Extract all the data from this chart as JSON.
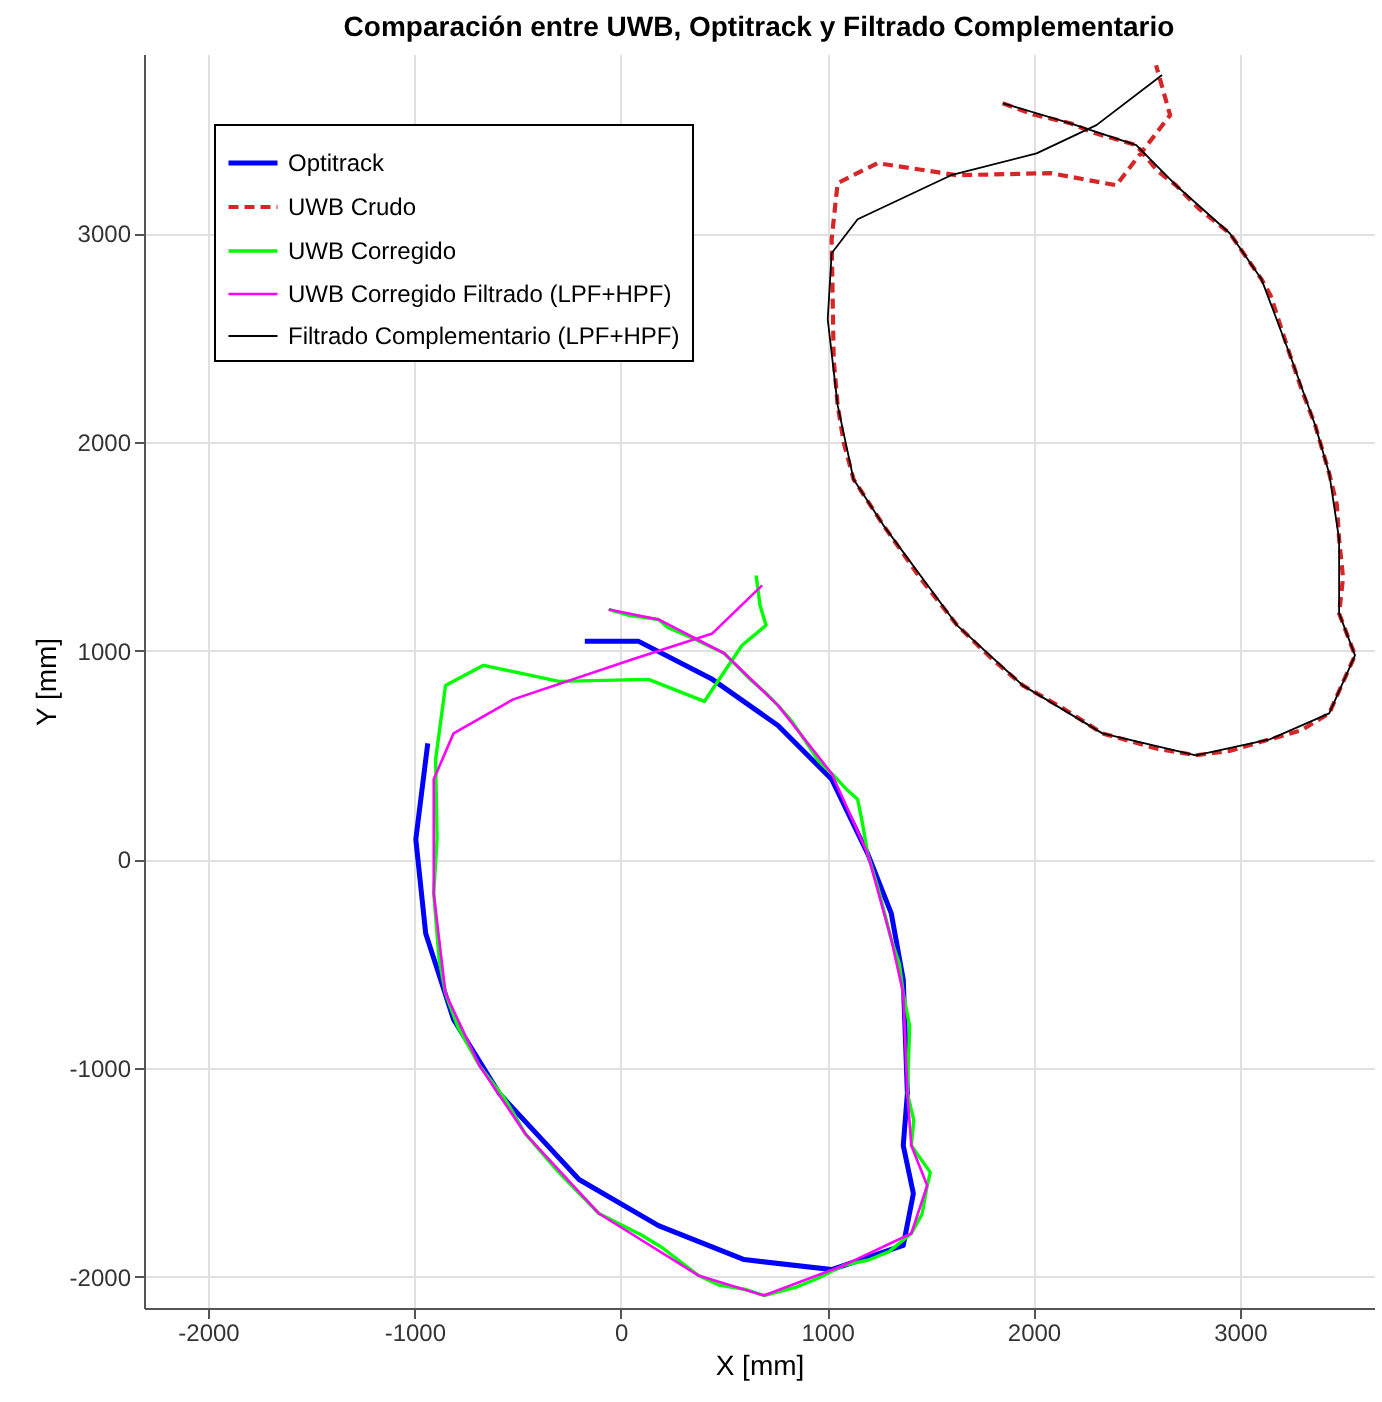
{
  "chart_data": {
    "type": "line",
    "title": "Comparación entre UWB, Optitrack y Filtrado Complementario",
    "xlabel": "X [mm]",
    "ylabel": "Y [mm]",
    "xlim": [
      -2310,
      3650
    ],
    "ylim": [
      -2150,
      3860
    ],
    "xticks": [
      -2000,
      -1000,
      0,
      1000,
      2000,
      3000
    ],
    "yticks": [
      -2000,
      -1000,
      0,
      1000,
      2000,
      3000
    ],
    "grid": true,
    "legend": "top left",
    "marker": "none",
    "series": [
      {
        "name": "Optitrack",
        "color": "#0000ff",
        "line_style": "solid",
        "x": [
          -174,
          87,
          444,
          762,
          1022,
          1196,
          1311,
          1369,
          1389,
          1369,
          1418,
          1369,
          1022,
          598,
          183,
          -202,
          -588,
          -810,
          -945,
          -993,
          -935
        ],
        "values": [
          1045,
          1045,
          863,
          642,
          384,
          29,
          -259,
          -575,
          -1122,
          -1371,
          -1601,
          -1850,
          -1966,
          -1918,
          -1755,
          -1534,
          -1122,
          -767,
          -355,
          96,
          556
        ]
      },
      {
        "name": "UWB Crudo",
        "color": "#d62728",
        "line_style": "dashed",
        "x": [
          1851,
          2000,
          2179,
          2300,
          2498,
          2600,
          2690,
          2800,
          2951,
          3105,
          3150,
          3240,
          3300,
          3365,
          3433,
          3470,
          3481,
          3500,
          3481,
          3558,
          3500,
          3433,
          3300,
          3144,
          2950,
          2787,
          2600,
          2334,
          2150,
          1948,
          1800,
          1630,
          1450,
          1273,
          1128,
          1080,
          1051,
          1032,
          1022,
          1051,
          1244,
          1630,
          2083,
          2401,
          2662,
          2594
        ],
        "values": [
          3624,
          3570,
          3528,
          3480,
          3423,
          3300,
          3231,
          3120,
          3001,
          2780,
          2700,
          2426,
          2250,
          2081,
          1850,
          1700,
          1534,
          1350,
          1179,
          978,
          850,
          700,
          620,
          575,
          520,
          499,
          530,
          604,
          720,
          834,
          960,
          1122,
          1350,
          1601,
          1822,
          2000,
          2177,
          2397,
          2972,
          3241,
          3337,
          3279,
          3289,
          3231,
          3567,
          3806
        ]
      },
      {
        "name": "UWB Corregido",
        "color": "#00ff00",
        "line_style": "solid",
        "x": [
          -58,
          40,
          183,
          230,
          350,
          501,
          560,
          620,
          700,
          762,
          830,
          900,
          960,
          1022,
          1100,
          1148,
          1170,
          1196,
          1250,
          1311,
          1350,
          1369,
          1400,
          1389,
          1420,
          1408,
          1500,
          1485,
          1460,
          1408,
          1300,
          1200,
          1080,
          950,
          850,
          694,
          600,
          476,
          376,
          200,
          100,
          -106,
          -300,
          -463,
          -560,
          -685,
          -790,
          -849,
          -880,
          -906,
          -890,
          -897,
          -849,
          -665,
          -299,
          135,
          405,
          588,
          704,
          675,
          656
        ],
        "values": [
          1198,
          1170,
          1150,
          1110,
          1060,
          988,
          930,
          870,
          800,
          738,
          660,
          560,
          470,
          412,
          330,
          288,
          180,
          29,
          -150,
          -384,
          -500,
          -642,
          -800,
          -1122,
          -1250,
          -1371,
          -1500,
          -1563,
          -1700,
          -1793,
          -1880,
          -1920,
          -1946,
          -2010,
          -2050,
          -2090,
          -2060,
          -2040,
          -1994,
          -1860,
          -1800,
          -1697,
          -1500,
          -1314,
          -1150,
          -988,
          -800,
          -642,
          -480,
          -163,
          100,
          479,
          834,
          930,
          853,
          863,
          757,
          1026,
          1122,
          1217,
          1361
        ]
      },
      {
        "name": "UWB Corregido Filtrado (LPF+HPF)",
        "color": "#ff00ff",
        "line_style": "solid",
        "x": [
          -58,
          183,
          501,
          762,
          1022,
          1196,
          1311,
          1369,
          1389,
          1408,
          1485,
          1408,
          1080,
          694,
          376,
          -106,
          -463,
          -685,
          -849,
          -906,
          -906,
          -810,
          -521,
          58,
          444,
          685
        ],
        "values": [
          1198,
          1150,
          988,
          738,
          412,
          29,
          -384,
          -642,
          -1122,
          -1371,
          -1563,
          -1793,
          -1946,
          -2090,
          -1994,
          -1697,
          -1314,
          -988,
          -642,
          -163,
          384,
          604,
          767,
          959,
          1083,
          1313
        ]
      },
      {
        "name": "Filtrado Complementario (LPF+HPF)",
        "color": "#000000",
        "line_style": "solid",
        "x": [
          1851,
          2179,
          2498,
          2690,
          2951,
          3105,
          3240,
          3365,
          3433,
          3481,
          3481,
          3558,
          3433,
          3144,
          2787,
          2334,
          1948,
          1630,
          1273,
          1128,
          1051,
          1003,
          1022,
          1148,
          1601,
          2015,
          2305,
          2623
        ],
        "values": [
          3624,
          3528,
          3423,
          3231,
          3001,
          2780,
          2426,
          2081,
          1850,
          1534,
          1179,
          978,
          700,
          575,
          499,
          604,
          834,
          1122,
          1601,
          1822,
          2177,
          2589,
          2905,
          3068,
          3279,
          3384,
          3519,
          3759
        ]
      }
    ]
  }
}
